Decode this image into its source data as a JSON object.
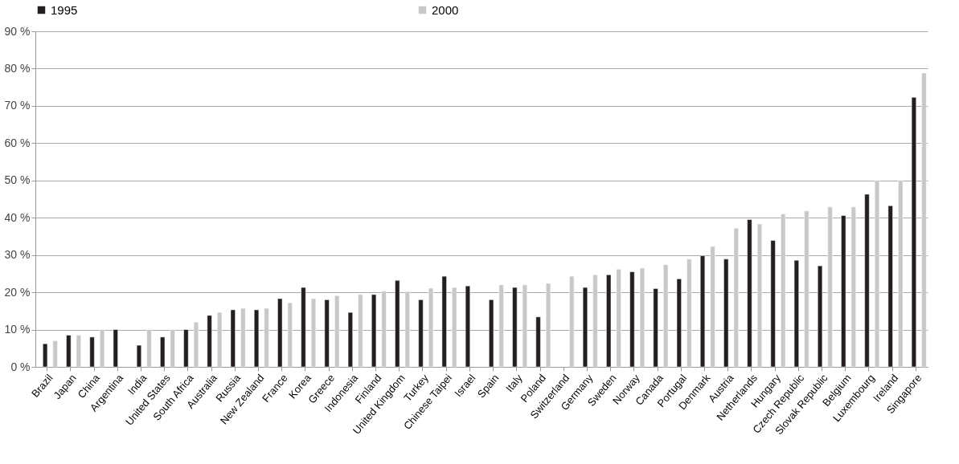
{
  "chart_data": {
    "type": "bar",
    "categories": [
      "Brazil",
      "Japan",
      "China",
      "Argentina",
      "India",
      "United States",
      "South Africa",
      "Australia",
      "Russia",
      "New Zealand",
      "France",
      "Korea",
      "Greece",
      "Indonesia",
      "Finland",
      "United Kingdom",
      "Turkey",
      "Chinese Taipei",
      "Israel",
      "Spain",
      "Italy",
      "Poland",
      "Switzerland",
      "Germany",
      "Sweden",
      "Norway",
      "Canada",
      "Portugal",
      "Denmark",
      "Austria",
      "Netherlands",
      "Hungary",
      "Czech Republic",
      "Slovak Republic",
      "Belgium",
      "Luxembourg",
      "Ireland",
      "Singapore"
    ],
    "series": [
      {
        "name": "1995",
        "color": "#231f20",
        "values": [
          6.2,
          8.5,
          8.0,
          10.0,
          5.8,
          8.0,
          10.0,
          13.8,
          15.3,
          15.3,
          18.3,
          21.3,
          18.0,
          14.6,
          19.4,
          23.2,
          18.0,
          24.3,
          21.7,
          18.0,
          21.3,
          13.4,
          null,
          21.3,
          24.7,
          25.5,
          21.0,
          23.6,
          29.8,
          28.9,
          39.5,
          33.9,
          28.6,
          27.1,
          40.6,
          46.3,
          43.2,
          72.3
        ]
      },
      {
        "name": "2000",
        "color": "#c8c8c8",
        "values": [
          7.0,
          8.5,
          10.0,
          null,
          10.0,
          10.0,
          12.0,
          14.6,
          15.7,
          15.7,
          17.2,
          18.3,
          19.1,
          19.4,
          20.3,
          20.2,
          21.1,
          21.3,
          null,
          22.0,
          22.0,
          22.4,
          24.3,
          24.7,
          26.2,
          26.5,
          27.4,
          28.9,
          32.3,
          37.2,
          38.3,
          41.0,
          41.8,
          42.9,
          42.9,
          50.0,
          50.0,
          78.8
        ]
      }
    ],
    "ylim": [
      0,
      90
    ],
    "yticks": [
      {
        "value": 0,
        "label": "0 %"
      },
      {
        "value": 10,
        "label": "10 %"
      },
      {
        "value": 20,
        "label": "20 %"
      },
      {
        "value": 30,
        "label": "30 %"
      },
      {
        "value": 40,
        "label": "40 %"
      },
      {
        "value": 50,
        "label": "50 %"
      },
      {
        "value": 60,
        "label": "60 %"
      },
      {
        "value": 70,
        "label": "70 %"
      },
      {
        "value": 80,
        "label": "80 %"
      },
      {
        "value": 90,
        "label": "90 %"
      }
    ],
    "grid": "y",
    "legend": "top"
  }
}
